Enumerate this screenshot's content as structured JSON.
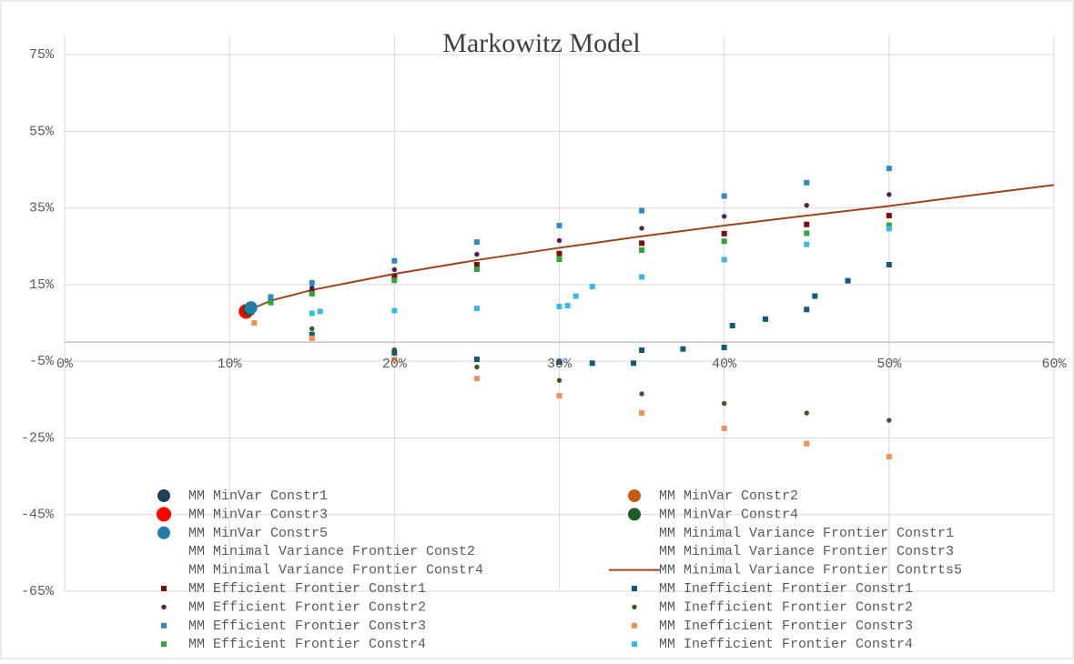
{
  "chart_data": {
    "type": "scatter",
    "title": "Markowitz Model",
    "xlim": [
      0,
      60
    ],
    "xticks": [
      {
        "value": 0,
        "label": "0%"
      },
      {
        "value": 10,
        "label": "10%"
      },
      {
        "value": 20,
        "label": "20%"
      },
      {
        "value": 30,
        "label": "30%"
      },
      {
        "value": 40,
        "label": "40%"
      },
      {
        "value": 50,
        "label": "50%"
      },
      {
        "value": 60,
        "label": "60%"
      }
    ],
    "ylim": [
      -65,
      80
    ],
    "yticks": [
      {
        "value": -65,
        "label": "-65%"
      },
      {
        "value": -45,
        "label": "-45%"
      },
      {
        "value": -25,
        "label": "-25%"
      },
      {
        "value": -5,
        "label": "-5%"
      },
      {
        "value": 15,
        "label": "15%"
      },
      {
        "value": 35,
        "label": "35%"
      },
      {
        "value": 55,
        "label": "55%"
      },
      {
        "value": 75,
        "label": "75%"
      }
    ],
    "grid": true,
    "legend": "bottom",
    "series": [
      {
        "name": "MM MinVar Constr1",
        "color": "#1f3f5a",
        "marker": "circle",
        "x": [
          11.2
        ],
        "values": [
          8.5
        ]
      },
      {
        "name": "MM MinVar Constr2",
        "color": "#c55a11",
        "marker": "circle",
        "x": [
          11.2
        ],
        "values": [
          8.5
        ]
      },
      {
        "name": "MM MinVar Constr3",
        "color": "#ff0000",
        "marker": "bigcircle",
        "x": [
          11
        ],
        "values": [
          8
        ]
      },
      {
        "name": "MM MinVar Constr4",
        "color": "#1e5c28",
        "marker": "circle",
        "x": [
          11.2
        ],
        "values": [
          8.5
        ]
      },
      {
        "name": "MM MinVar Constr5",
        "color": "#1f7fa8",
        "marker": "circle",
        "x": [
          11.3
        ],
        "values": [
          9
        ]
      },
      {
        "name": "MM Minimal Variance Frontier Constr1",
        "marker": "none",
        "x": [],
        "values": []
      },
      {
        "name": "MM Minimal Variance Frontier Const2",
        "marker": "none",
        "x": [],
        "values": []
      },
      {
        "name": "MM Minimal Variance Frontier Constr3",
        "marker": "none",
        "x": [],
        "values": []
      },
      {
        "name": "MM Minimal Variance Frontier Constr4",
        "marker": "none",
        "x": [],
        "values": []
      },
      {
        "name": "MM Minimal Variance Frontier Contrts5",
        "color": "#a0421a",
        "marker": "line",
        "x": [
          11,
          12.5,
          15,
          20,
          25,
          30,
          35,
          40,
          45,
          50,
          55,
          60
        ],
        "values": [
          8,
          10.8,
          13.6,
          17.8,
          21.4,
          24.6,
          27.6,
          30.4,
          33,
          35.5,
          38.3,
          41
        ]
      },
      {
        "name": "MM Efficient Frontier Constr1",
        "color": "#7b0f0f",
        "marker": "square",
        "x": [
          11,
          12.5,
          15,
          20,
          25,
          30,
          35,
          40,
          45,
          50
        ],
        "values": [
          8,
          10.6,
          13.1,
          17,
          20.2,
          23.1,
          25.8,
          28.3,
          30.7,
          33
        ]
      },
      {
        "name": "MM Inefficient Frontier Constr1",
        "color": "#0f5a78",
        "marker": "square",
        "x": [
          11,
          15,
          20,
          25,
          30,
          32,
          34.5,
          35,
          37.5,
          40,
          40.5,
          42.5,
          45,
          45.5,
          47.5,
          50
        ],
        "values": [
          8,
          2,
          -2.8,
          -4.5,
          -5.2,
          -5.5,
          -5.5,
          -2.1,
          -1.8,
          -1.4,
          4.3,
          6,
          8.5,
          12,
          16,
          20.2
        ]
      },
      {
        "name": "MM Efficient Frontier Constr2",
        "color": "#5c1a5c",
        "marker": "dot",
        "x": [
          11,
          12.5,
          15,
          20,
          25,
          30,
          35,
          40,
          45,
          50
        ],
        "values": [
          8,
          11.1,
          14.2,
          18.9,
          22.9,
          26.5,
          29.7,
          32.8,
          35.7,
          38.5
        ]
      },
      {
        "name": "MM Inefficient Frontier Constr2",
        "color": "#2e5e1e",
        "marker": "dot",
        "x": [
          11,
          15,
          20,
          25,
          30,
          35,
          40,
          45,
          50
        ],
        "values": [
          8,
          3.5,
          -2,
          -6.5,
          -10,
          -13.5,
          -16,
          -18.5,
          -20.4
        ]
      },
      {
        "name": "MM Efficient Frontier Constr3",
        "color": "#2e8bc8",
        "marker": "square",
        "x": [
          11,
          12.5,
          15,
          20,
          25,
          30,
          35,
          40,
          45,
          50
        ],
        "values": [
          8,
          11.8,
          15.5,
          21.2,
          26.1,
          30.4,
          34.3,
          38.1,
          41.6,
          45.3
        ]
      },
      {
        "name": "MM Inefficient Frontier Constr3",
        "color": "#f0905a",
        "marker": "square",
        "x": [
          11.5,
          15,
          20,
          25,
          30,
          35,
          40,
          45,
          50
        ],
        "values": [
          5,
          1,
          -4.5,
          -9.5,
          -14,
          -18.5,
          -22.5,
          -26.5,
          -29.9
        ]
      },
      {
        "name": "MM Efficient Frontier Constr4",
        "color": "#2ea83a",
        "marker": "square",
        "x": [
          11,
          12.5,
          15,
          20,
          25,
          30,
          35,
          40,
          45,
          50
        ],
        "values": [
          8,
          10.3,
          12.6,
          16.1,
          19,
          21.6,
          24,
          26.3,
          28.4,
          30.5
        ]
      },
      {
        "name": "MM Inefficient Frontier Constr4",
        "color": "#3ab8e8",
        "marker": "square",
        "x": [
          11.5,
          15,
          15.5,
          20,
          25,
          30,
          30.5,
          31,
          32,
          35,
          40,
          45,
          50
        ],
        "values": [
          9,
          7.5,
          8,
          8.2,
          8.8,
          9.3,
          9.5,
          12,
          14.5,
          17,
          21.5,
          25.5,
          29.6
        ]
      }
    ]
  }
}
